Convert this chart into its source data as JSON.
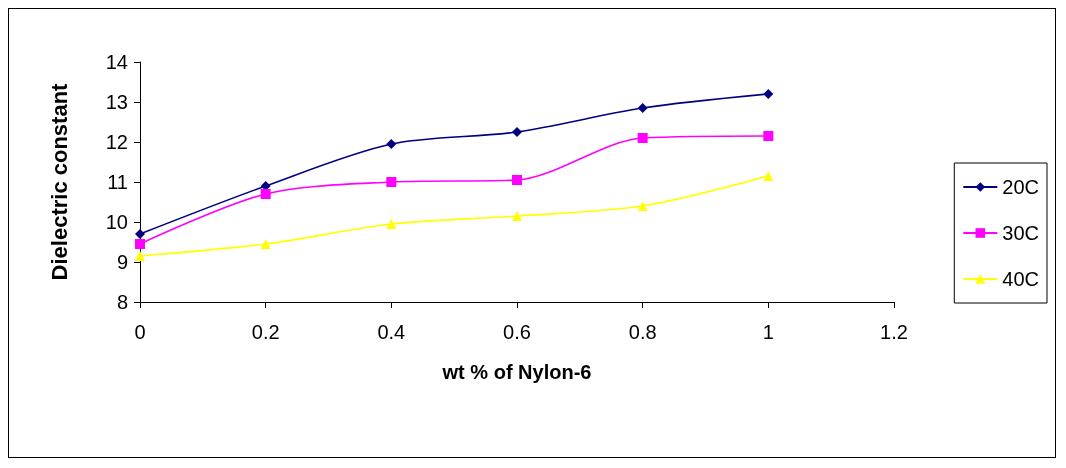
{
  "chart_data": {
    "type": "line",
    "xlabel": "wt % of Nylon-6",
    "ylabel": "Dielectric constant",
    "x": [
      0,
      0.2,
      0.4,
      0.6,
      0.8,
      1
    ],
    "xlim": [
      0,
      1.2
    ],
    "xticks": [
      0,
      0.2,
      0.4,
      0.6,
      0.8,
      1,
      1.2
    ],
    "ylim": [
      8,
      14
    ],
    "yticks": [
      8,
      9,
      10,
      11,
      12,
      13,
      14
    ],
    "grid": false,
    "legend": "right",
    "line_style": "solid",
    "series": [
      {
        "name": "20C",
        "color": "#000080",
        "marker": "diamond",
        "values": [
          9.7,
          10.9,
          11.95,
          12.25,
          12.85,
          13.2
        ]
      },
      {
        "name": "30C",
        "color": "#ff00ff",
        "marker": "square",
        "values": [
          9.45,
          10.7,
          11.0,
          11.05,
          12.1,
          12.15
        ]
      },
      {
        "name": "40C",
        "color": "#ffff00",
        "marker": "triangle",
        "values": [
          9.15,
          9.45,
          9.95,
          10.15,
          10.4,
          11.15
        ]
      }
    ]
  }
}
